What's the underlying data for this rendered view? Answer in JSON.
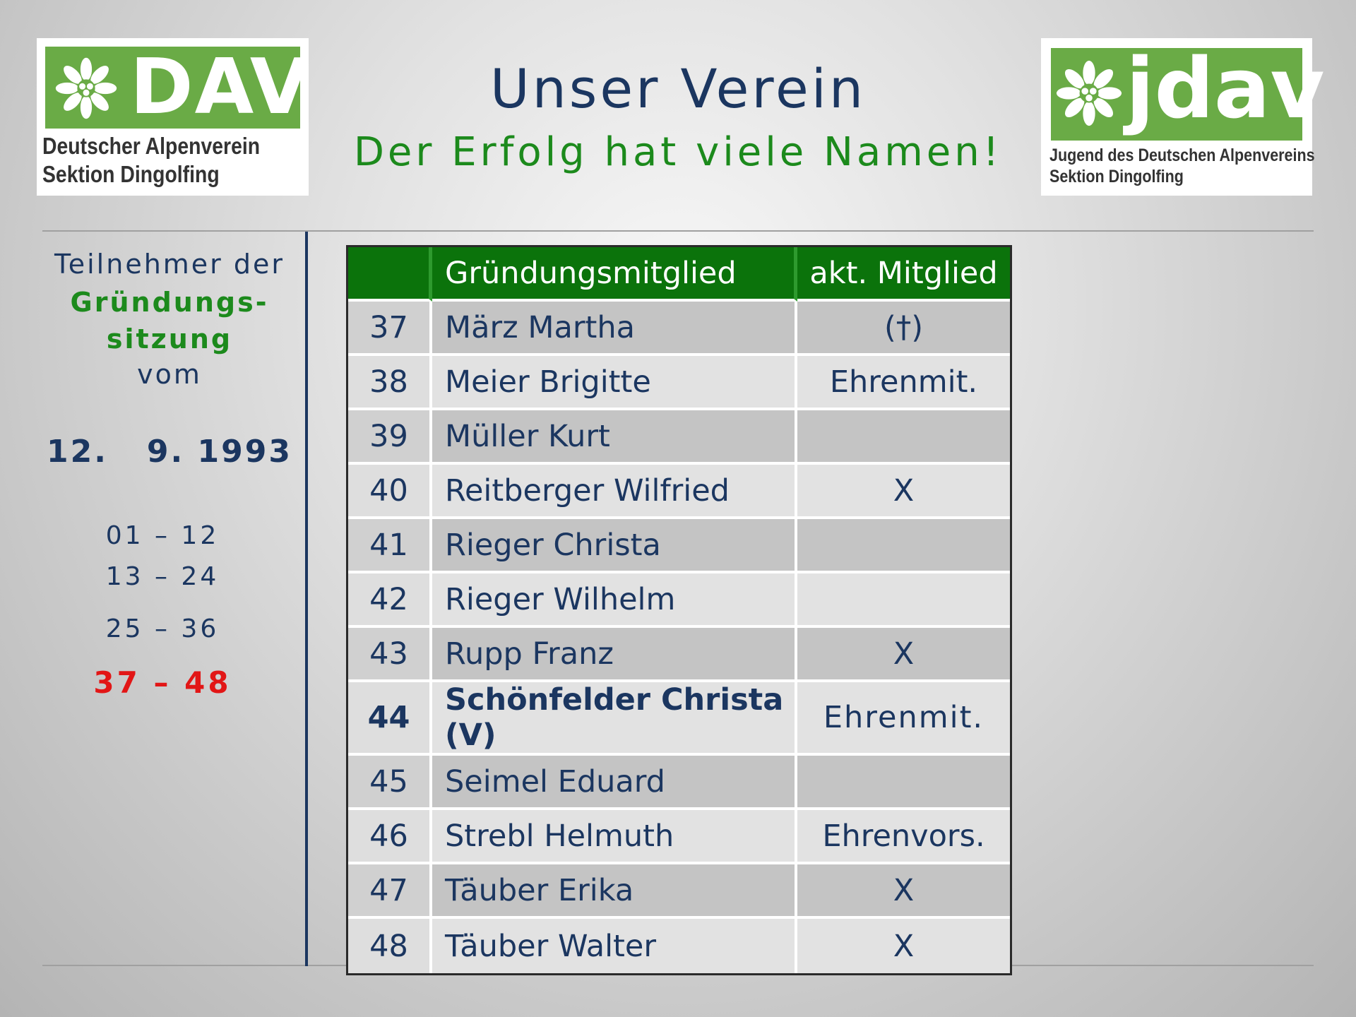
{
  "header": {
    "title": "Unser Verein",
    "subtitle": "Der Erfolg hat viele Namen!"
  },
  "logos": {
    "dav": {
      "word": "DAV",
      "line1": "Deutscher Alpenverein",
      "line2": "Sektion Dingolfing",
      "color": "#6aab46"
    },
    "jdav": {
      "word": "jdav",
      "line1": "Jugend des Deutschen Alpenvereins",
      "line2": "Sektion Dingolfing",
      "color": "#6aab46"
    }
  },
  "sidebar": {
    "line1": "Teilnehmer der",
    "line2": "Gründungs-",
    "line3": "sitzung",
    "line4": "vom",
    "date": "12.   9. 1993",
    "ranges": [
      "01 – 12",
      "13 – 24",
      "25 – 36",
      "37 – 48"
    ],
    "active_range_color": "#e21616"
  },
  "table": {
    "columns": [
      "",
      "Gründungsmitglied",
      "akt. Mitglied"
    ],
    "rows": [
      {
        "num": "37",
        "name": "März Martha",
        "status": "(†)"
      },
      {
        "num": "38",
        "name": "Meier Brigitte",
        "status": "Ehrenmit."
      },
      {
        "num": "39",
        "name": "Müller Kurt",
        "status": ""
      },
      {
        "num": "40",
        "name": "Reitberger Wilfried",
        "status": "X"
      },
      {
        "num": "41",
        "name": "Rieger Christa",
        "status": ""
      },
      {
        "num": "42",
        "name": "Rieger Wilhelm",
        "status": ""
      },
      {
        "num": "43",
        "name": "Rupp Franz",
        "status": "X"
      },
      {
        "num": "44",
        "name": "Schönfelder Christa (V)",
        "status": "Ehrenmit."
      },
      {
        "num": "45",
        "name": "Seimel Eduard",
        "status": ""
      },
      {
        "num": "46",
        "name": "Strebl Helmuth",
        "status": "Ehrenvors."
      },
      {
        "num": "47",
        "name": "Täuber Erika",
        "status": "X"
      },
      {
        "num": "48",
        "name": "Täuber Walter",
        "status": "X"
      }
    ],
    "header_color": "#0b730b",
    "text_color": "#1b3660"
  }
}
